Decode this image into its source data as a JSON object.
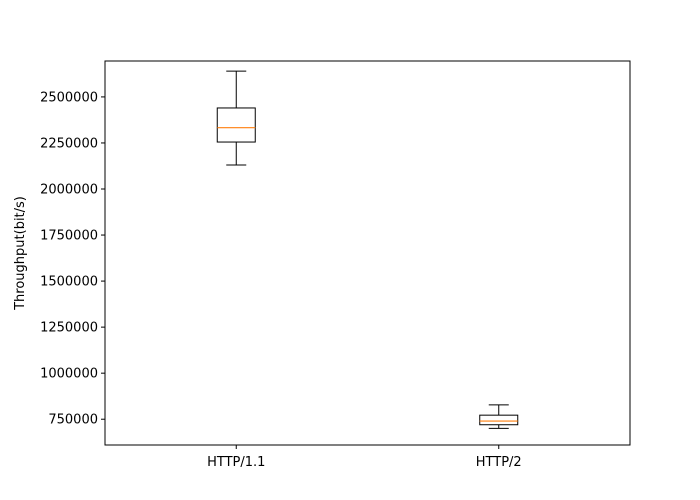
{
  "chart_data": {
    "type": "box",
    "title": "",
    "xlabel": "",
    "ylabel": "Throughput(bit/s)",
    "ylim": [
      610000,
      2695000
    ],
    "yticks": [
      750000,
      1000000,
      1250000,
      1500000,
      1750000,
      2000000,
      2250000,
      2500000
    ],
    "grid": false,
    "categories": [
      "HTTP/1.1",
      "HTTP/2"
    ],
    "boxes": [
      {
        "category": "HTTP/1.1",
        "whisker_low": 2130000,
        "q1": 2255000,
        "median": 2333000,
        "q3": 2440000,
        "whisker_high": 2640000
      },
      {
        "category": "HTTP/2",
        "whisker_low": 700000,
        "q1": 720000,
        "median": 740000,
        "q3": 772000,
        "whisker_high": 828000
      }
    ],
    "colors": {
      "box": "#000000",
      "median": "#ff7f0e"
    }
  }
}
